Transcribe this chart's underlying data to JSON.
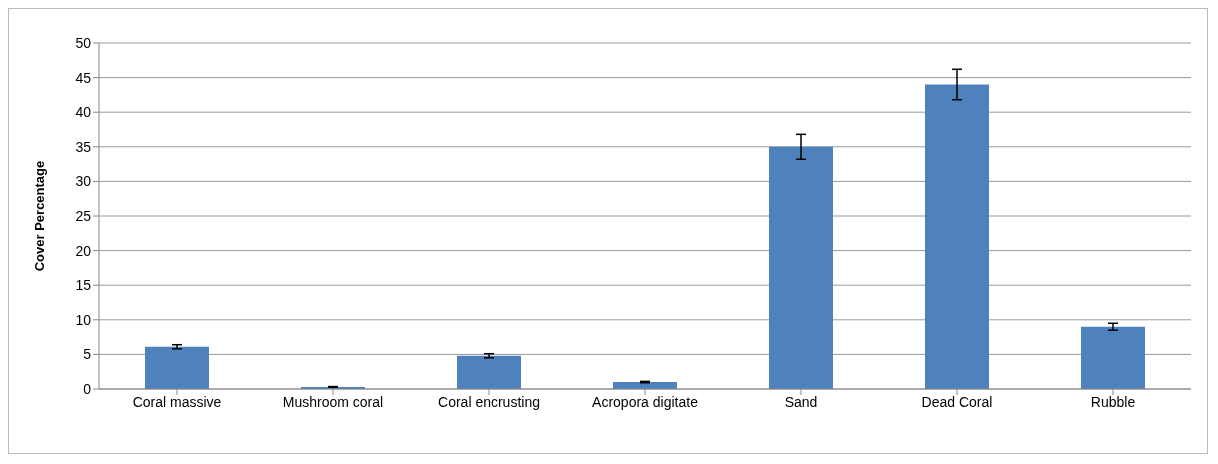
{
  "chart_data": {
    "type": "bar",
    "ylabel": "Cover Percentage",
    "categories": [
      "Coral massive",
      "Mushroom coral",
      "Coral encrusting",
      "Acropora digitate",
      "Sand",
      "Dead Coral",
      "Rubble"
    ],
    "values": [
      6.1,
      0.3,
      4.8,
      1.0,
      35,
      44,
      9
    ],
    "errors": [
      0.3,
      0.05,
      0.3,
      0.1,
      1.8,
      2.2,
      0.5
    ],
    "color": "#4f81bd",
    "ylim": [
      0,
      50
    ],
    "yticks": [
      0,
      5,
      10,
      15,
      20,
      25,
      30,
      35,
      40,
      45,
      50
    ],
    "grid": "y"
  }
}
